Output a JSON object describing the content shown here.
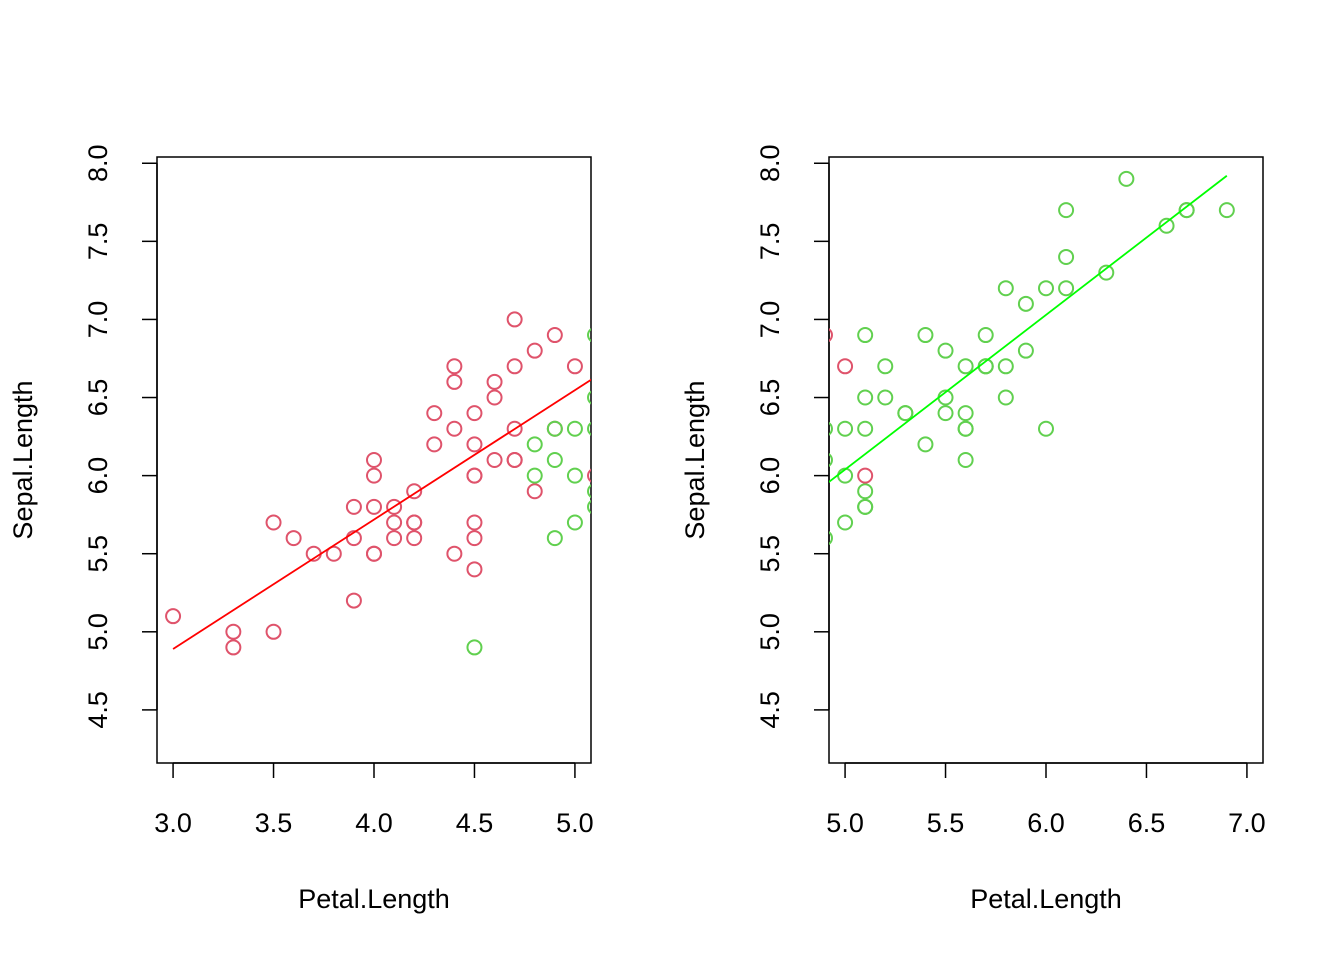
{
  "chart_data": [
    {
      "type": "scatter",
      "xlabel": "Petal.Length",
      "ylabel": "Sepal.Length",
      "xlim": [
        2.92,
        5.08
      ],
      "ylim": [
        4.16,
        8.04
      ],
      "xticks": [
        {
          "value": 3,
          "label": "3.0"
        },
        {
          "value": 3.5,
          "label": "3.5"
        },
        {
          "value": 4,
          "label": "4.0"
        },
        {
          "value": 4.5,
          "label": "4.5"
        },
        {
          "value": 5,
          "label": "5.0"
        }
      ],
      "yticks": [
        4.5,
        {
          "value": 5,
          "label": "5.0"
        },
        5.5,
        {
          "value": 6,
          "label": "6.0"
        },
        6.5,
        {
          "value": 7,
          "label": "7.0"
        },
        7.5,
        {
          "value": 8,
          "label": "8.0"
        }
      ],
      "series": [
        {
          "mode": "markers",
          "color": "#DF536B",
          "x": [
            3.0,
            3.3,
            3.3,
            3.5,
            3.5,
            3.6,
            3.7,
            3.8,
            3.9,
            3.9,
            3.9,
            4.0,
            4.0,
            4.0,
            4.0,
            4.0,
            4.1,
            4.1,
            4.1,
            4.2,
            4.2,
            4.2,
            4.2,
            4.3,
            4.3,
            4.4,
            4.4,
            4.4,
            4.4,
            4.5,
            4.5,
            4.5,
            4.5,
            4.5,
            4.5,
            4.5,
            4.6,
            4.6,
            4.6,
            4.7,
            4.7,
            4.7,
            4.7,
            4.7,
            4.8,
            4.8,
            4.9,
            4.9,
            5.0,
            5.1
          ],
          "values": [
            5.1,
            5.0,
            4.9,
            5.7,
            5.0,
            5.6,
            5.5,
            5.5,
            5.8,
            5.6,
            5.2,
            6.1,
            6.0,
            5.8,
            5.5,
            5.5,
            5.8,
            5.7,
            5.6,
            5.9,
            5.7,
            5.7,
            5.6,
            6.4,
            6.2,
            6.7,
            6.6,
            6.3,
            5.5,
            6.4,
            6.2,
            6.0,
            6.0,
            5.7,
            5.6,
            5.4,
            6.6,
            6.5,
            6.1,
            7.0,
            6.7,
            6.3,
            6.1,
            6.1,
            6.8,
            5.9,
            6.9,
            6.3,
            6.7,
            6.0
          ]
        },
        {
          "mode": "markers",
          "color": "#61D04F",
          "x": [
            4.5,
            4.8,
            4.8,
            4.9,
            4.9,
            4.9,
            5.0,
            5.0,
            5.0,
            5.1,
            5.1,
            5.1,
            5.1,
            5.1
          ],
          "values": [
            4.9,
            6.2,
            6.0,
            6.3,
            6.1,
            5.6,
            6.3,
            6.0,
            5.7,
            6.9,
            6.5,
            6.3,
            5.9,
            5.8
          ]
        },
        {
          "mode": "line",
          "color": "#FF0000",
          "x": [
            3.0,
            5.1
          ],
          "values": [
            4.89,
            6.63
          ]
        }
      ]
    },
    {
      "type": "scatter",
      "xlabel": "Petal.Length",
      "ylabel": "Sepal.Length",
      "xlim": [
        4.92,
        7.08
      ],
      "ylim": [
        4.16,
        8.04
      ],
      "xticks": [
        {
          "value": 5,
          "label": "5.0"
        },
        {
          "value": 5.5,
          "label": "5.5"
        },
        {
          "value": 6,
          "label": "6.0"
        },
        {
          "value": 6.5,
          "label": "6.5"
        },
        {
          "value": 7,
          "label": "7.0"
        }
      ],
      "yticks": [
        4.5,
        {
          "value": 5,
          "label": "5.0"
        },
        5.5,
        {
          "value": 6,
          "label": "6.0"
        },
        6.5,
        {
          "value": 7,
          "label": "7.0"
        },
        7.5,
        {
          "value": 8,
          "label": "8.0"
        }
      ],
      "series": [
        {
          "mode": "markers",
          "color": "#61D04F",
          "x": [
            4.9,
            4.9,
            4.9,
            5.0,
            5.0,
            5.0,
            5.1,
            5.1,
            5.1,
            5.1,
            5.1,
            5.1,
            5.2,
            5.2,
            5.3,
            5.3,
            5.4,
            5.4,
            5.5,
            5.5,
            5.5,
            5.6,
            5.6,
            5.6,
            5.6,
            5.6,
            5.7,
            5.7,
            5.7,
            5.8,
            5.8,
            5.8,
            5.9,
            5.9,
            6.0,
            6.0,
            6.1,
            6.1,
            6.1,
            6.3,
            6.4,
            6.6,
            6.7,
            6.7,
            6.9
          ],
          "values": [
            6.3,
            6.1,
            5.6,
            6.3,
            6.0,
            5.7,
            6.9,
            6.5,
            6.3,
            5.9,
            5.8,
            5.8,
            6.7,
            6.5,
            6.4,
            6.4,
            6.9,
            6.2,
            6.8,
            6.5,
            6.4,
            6.7,
            6.4,
            6.3,
            6.3,
            6.1,
            6.9,
            6.7,
            6.7,
            7.2,
            6.7,
            6.5,
            7.1,
            6.8,
            7.2,
            6.3,
            7.7,
            7.4,
            7.2,
            7.3,
            7.9,
            7.6,
            7.7,
            7.7,
            7.7
          ]
        },
        {
          "mode": "markers",
          "color": "#DF536B",
          "x": [
            4.9,
            5.0,
            5.1
          ],
          "values": [
            6.9,
            6.7,
            6.0
          ]
        },
        {
          "mode": "line",
          "color": "#00FF00",
          "x": [
            4.9,
            6.9
          ],
          "values": [
            5.94,
            7.92
          ]
        }
      ]
    }
  ]
}
